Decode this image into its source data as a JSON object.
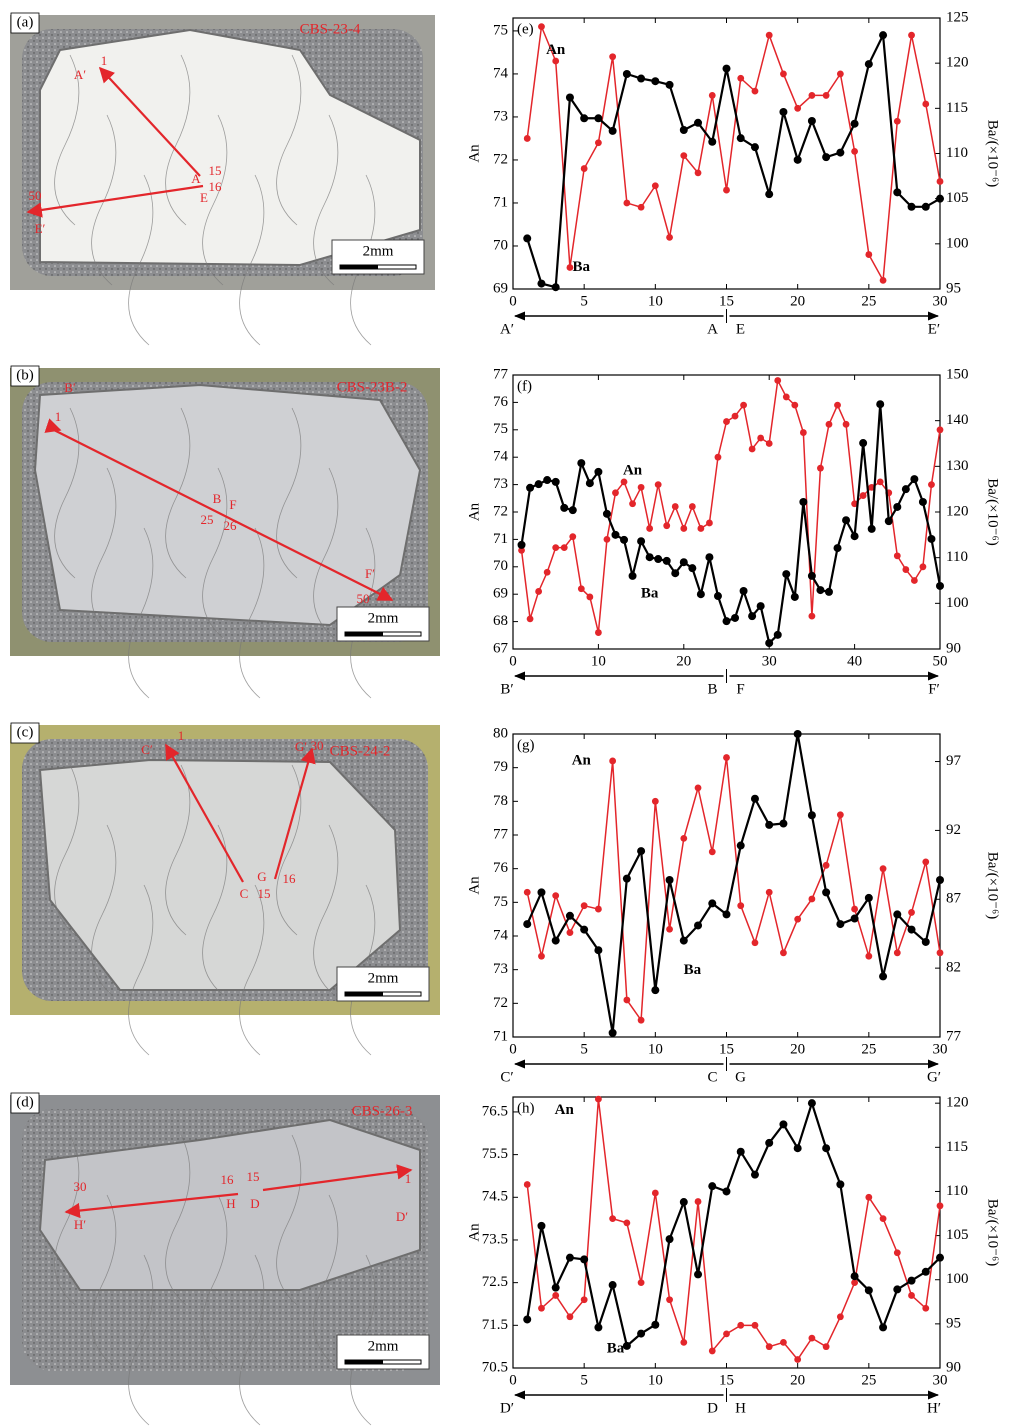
{
  "photos": [
    {
      "label": "(a)",
      "sample": "CBS-23-4",
      "scale": "2mm",
      "annotations": [
        "A′",
        "1",
        "15",
        "A",
        "16",
        "E",
        "50",
        "E′"
      ]
    },
    {
      "label": "(b)",
      "sample": "CBS-23B-2",
      "scale": "2mm",
      "annotations": [
        "B′",
        "1",
        "B",
        "25",
        "F",
        "26",
        "F′",
        "50"
      ]
    },
    {
      "label": "(c)",
      "sample": "CBS-24-2",
      "scale": "2mm",
      "annotations": [
        "C′",
        "1",
        "G′",
        "30",
        "C",
        "15",
        "G",
        "16"
      ]
    },
    {
      "label": "(d)",
      "sample": "CBS-26-3",
      "scale": "2mm",
      "annotations": [
        "30",
        "H′",
        "16",
        "H",
        "15",
        "D",
        "1",
        "D′"
      ]
    }
  ],
  "chart_data": [
    {
      "type": "line",
      "label": "(e)",
      "ylabel": "An",
      "y2label": "Ba/(×10⁻⁶)",
      "x": [
        1,
        2,
        3,
        4,
        5,
        6,
        7,
        8,
        9,
        10,
        11,
        12,
        13,
        14,
        15,
        16,
        17,
        18,
        19,
        20,
        21,
        22,
        23,
        24,
        25,
        26,
        27,
        28,
        29,
        30
      ],
      "xlim": [
        0,
        30
      ],
      "xticks": [
        0,
        5,
        10,
        15,
        20,
        25,
        30
      ],
      "ylim": [
        69,
        75.3
      ],
      "yticks": [
        69,
        70,
        71,
        72,
        73,
        74,
        75
      ],
      "y2lim": [
        95,
        125
      ],
      "y2ticks": [
        95,
        100,
        105,
        110,
        115,
        120,
        125
      ],
      "path_labels": [
        "A′",
        "A",
        "E",
        "E′"
      ],
      "series": [
        {
          "name": "An",
          "color": "#e3262b",
          "values": [
            72.5,
            75.1,
            74.3,
            69.5,
            71.8,
            72.4,
            74.4,
            71.0,
            70.9,
            71.4,
            70.2,
            72.1,
            71.7,
            73.5,
            71.3,
            73.9,
            73.6,
            74.9,
            74.0,
            73.2,
            73.5,
            73.5,
            74.0,
            72.2,
            69.8,
            69.2,
            72.9,
            74.9,
            73.3,
            71.5
          ]
        },
        {
          "name": "Ba",
          "color": "#000000",
          "axis": "y2",
          "values": [
            100.6,
            95.6,
            95.2,
            116.2,
            113.9,
            113.9,
            112.5,
            118.8,
            118.3,
            118.0,
            117.6,
            112.6,
            113.4,
            111.3,
            119.4,
            111.7,
            110.7,
            105.5,
            114.6,
            109.3,
            113.6,
            109.6,
            110.1,
            113.3,
            119.9,
            123.1,
            105.7,
            104.1,
            104.1,
            105.0
          ]
        }
      ]
    },
    {
      "type": "line",
      "label": "(f)",
      "ylabel": "An",
      "y2label": "Ba/(×10⁻⁶)",
      "x": [
        1,
        2,
        3,
        4,
        5,
        6,
        7,
        8,
        9,
        10,
        11,
        12,
        13,
        14,
        15,
        16,
        17,
        18,
        19,
        20,
        21,
        22,
        23,
        24,
        25,
        26,
        27,
        28,
        29,
        30,
        31,
        32,
        33,
        34,
        35,
        36,
        37,
        38,
        39,
        40,
        41,
        42,
        43,
        44,
        45,
        46,
        47,
        48,
        49,
        50
      ],
      "xlim": [
        0,
        50
      ],
      "xticks": [
        0,
        10,
        20,
        30,
        40,
        50
      ],
      "ylim": [
        67,
        77
      ],
      "yticks": [
        67,
        68,
        69,
        70,
        71,
        72,
        73,
        74,
        75,
        76,
        77
      ],
      "y2lim": [
        90,
        150
      ],
      "y2ticks": [
        90,
        100,
        110,
        120,
        130,
        140,
        150
      ],
      "path_labels": [
        "B′",
        "B",
        "F",
        "F′"
      ],
      "series": [
        {
          "name": "An",
          "color": "#e3262b",
          "values": [
            70.6,
            68.1,
            69.1,
            69.8,
            70.7,
            70.7,
            71.1,
            69.2,
            68.9,
            67.6,
            71.0,
            72.7,
            73.1,
            72.3,
            72.9,
            71.4,
            73.0,
            71.5,
            72.2,
            71.4,
            72.2,
            71.4,
            71.6,
            74.0,
            75.3,
            75.5,
            75.9,
            74.3,
            74.7,
            74.5,
            76.8,
            76.2,
            75.9,
            74.9,
            68.2,
            73.6,
            75.2,
            75.9,
            75.2,
            72.3,
            72.6,
            72.9,
            73.1,
            72.7,
            70.4,
            69.9,
            69.5,
            70.0,
            73.0,
            75.0
          ]
        },
        {
          "name": "Ba",
          "color": "#000000",
          "axis": "y2",
          "values": [
            112.8,
            125.3,
            126.1,
            127.0,
            126.6,
            120.9,
            120.4,
            130.7,
            126.3,
            128.8,
            119.6,
            115.0,
            113.9,
            106.0,
            113.6,
            110.1,
            109.7,
            109.3,
            106.6,
            109.0,
            107.7,
            102.0,
            110.1,
            101.6,
            96.1,
            96.8,
            102.7,
            97.2,
            99.4,
            91.3,
            93.1,
            106.4,
            101.4,
            122.2,
            106.0,
            102.9,
            102.5,
            112.1,
            118.2,
            114.7,
            135.1,
            116.3,
            143.6,
            118.0,
            121.1,
            125.0,
            127.2,
            122.2,
            114.1,
            103.8
          ]
        }
      ]
    },
    {
      "type": "line",
      "label": "(g)",
      "ylabel": "An",
      "y2label": "Ba/(×10⁻⁶)",
      "x": [
        1,
        2,
        3,
        4,
        5,
        6,
        7,
        8,
        9,
        10,
        11,
        12,
        13,
        14,
        15,
        16,
        17,
        18,
        19,
        20,
        21,
        22,
        23,
        24,
        25,
        26,
        27,
        28,
        29,
        30
      ],
      "xlim": [
        0,
        30
      ],
      "xticks": [
        0,
        5,
        10,
        15,
        20,
        25,
        30
      ],
      "ylim": [
        71,
        80
      ],
      "yticks": [
        71,
        72,
        73,
        74,
        75,
        76,
        77,
        78,
        79,
        80
      ],
      "y2lim": [
        77,
        99
      ],
      "y2ticks": [
        77,
        82,
        87,
        92,
        97
      ],
      "path_labels": [
        "C′",
        "C",
        "G",
        "G′"
      ],
      "series": [
        {
          "name": "An",
          "color": "#e3262b",
          "values": [
            75.3,
            73.4,
            75.2,
            74.1,
            74.9,
            74.8,
            79.2,
            72.1,
            71.5,
            78.0,
            74.2,
            76.9,
            78.4,
            76.5,
            79.3,
            74.9,
            73.8,
            75.3,
            73.5,
            74.5,
            75.1,
            76.1,
            77.6,
            74.8,
            73.4,
            76.0,
            73.5,
            74.7,
            76.2,
            73.5
          ]
        },
        {
          "name": "Ba",
          "color": "#000000",
          "axis": "y2",
          "values": [
            85.2,
            87.5,
            84.0,
            85.8,
            84.8,
            83.3,
            77.3,
            88.5,
            90.5,
            80.4,
            88.4,
            84.0,
            85.1,
            86.7,
            85.9,
            90.9,
            94.3,
            92.4,
            92.5,
            99.0,
            93.1,
            87.5,
            85.2,
            85.6,
            87.1,
            81.4,
            85.9,
            84.8,
            83.9,
            88.4
          ]
        }
      ]
    },
    {
      "type": "line",
      "label": "(h)",
      "ylabel": "An",
      "y2label": "Ba/(×10⁻⁶)",
      "x": [
        1,
        2,
        3,
        4,
        5,
        6,
        7,
        8,
        9,
        10,
        11,
        12,
        13,
        14,
        15,
        16,
        17,
        18,
        19,
        20,
        21,
        22,
        23,
        24,
        25,
        26,
        27,
        28,
        29,
        30
      ],
      "xlim": [
        0,
        30
      ],
      "xticks": [
        0,
        5,
        10,
        15,
        20,
        25,
        30
      ],
      "ylim": [
        70.5,
        76.85
      ],
      "yticks": [
        70.5,
        71.5,
        72.5,
        73.5,
        74.5,
        75.5,
        76.5
      ],
      "y2lim": [
        90,
        120.7
      ],
      "y2ticks": [
        90,
        95,
        100,
        105,
        110,
        115,
        120
      ],
      "path_labels": [
        "D′",
        "D",
        "H",
        "H′"
      ],
      "series": [
        {
          "name": "An",
          "color": "#e3262b",
          "values": [
            74.8,
            71.9,
            72.2,
            71.7,
            72.1,
            76.8,
            74.0,
            73.9,
            72.5,
            74.6,
            72.1,
            71.1,
            74.4,
            70.9,
            71.3,
            71.5,
            71.5,
            71.0,
            71.1,
            70.7,
            71.2,
            71.0,
            71.7,
            72.5,
            74.5,
            74.0,
            73.2,
            72.2,
            71.9,
            74.3
          ]
        },
        {
          "name": "Ba",
          "color": "#000000",
          "axis": "y2",
          "values": [
            95.5,
            106.1,
            99.1,
            102.5,
            102.3,
            94.6,
            99.4,
            92.5,
            93.9,
            94.9,
            104.6,
            108.8,
            100.6,
            110.6,
            110.0,
            114.5,
            111.9,
            115.5,
            117.6,
            114.9,
            120.0,
            114.9,
            110.8,
            100.4,
            98.8,
            94.6,
            98.9,
            99.9,
            100.9,
            102.5
          ]
        }
      ]
    }
  ]
}
